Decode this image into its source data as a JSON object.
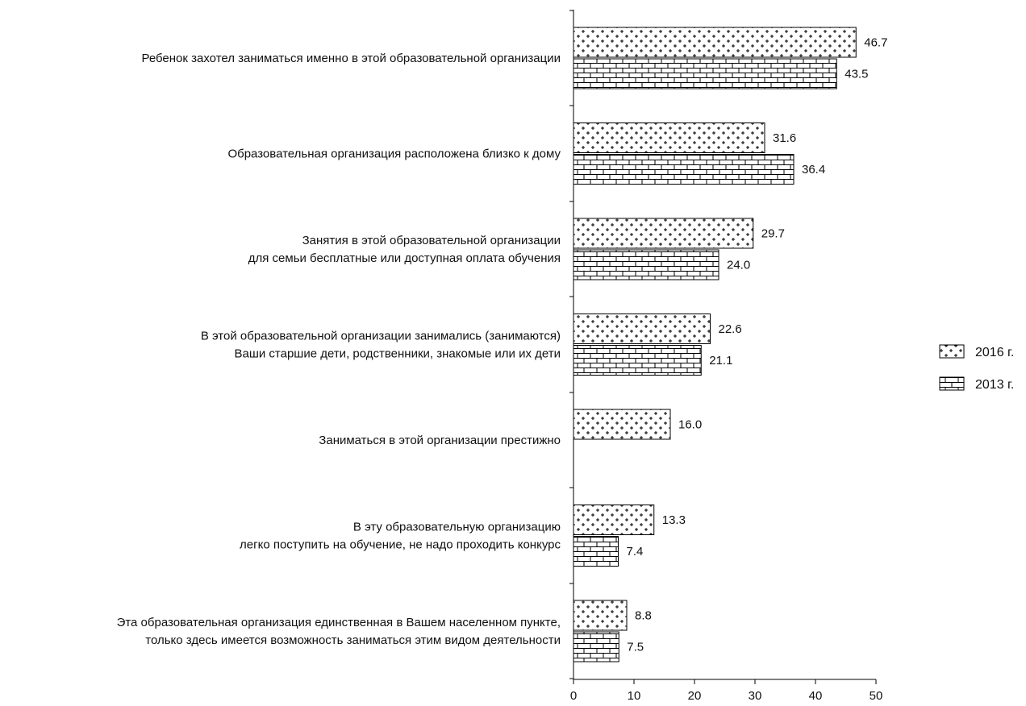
{
  "chart_data": {
    "type": "bar",
    "orientation": "horizontal",
    "categories": [
      [
        "Ребенок захотел заниматься именно в этой образовательной организации"
      ],
      [
        "Образовательная организация расположена близко к дому"
      ],
      [
        "Занятия в этой образовательной организации",
        "для семьи бесплатные или доступная оплата обучения"
      ],
      [
        "В этой образовательной организации занимались (занимаются)",
        "Ваши старшие дети, родственники, знакомые или их дети"
      ],
      [
        "Заниматься в этой организации престижно"
      ],
      [
        "В эту образовательную организацию",
        "легко поступить на обучение, не надо проходить конкурс"
      ],
      [
        "Эта образовательная организация единственная в Вашем населенном пункте,",
        "только здесь имеется возможность заниматься этим видом деятельности"
      ]
    ],
    "series": [
      {
        "name": "2016 г.",
        "pattern": "cross-hatch",
        "values": [
          46.7,
          31.6,
          29.7,
          22.6,
          16.0,
          13.3,
          8.8
        ],
        "labels": [
          "46.7",
          "31.6",
          "29.7",
          "22.6",
          "16.0",
          "13.3",
          "8.8"
        ]
      },
      {
        "name": "2013 г.",
        "pattern": "brick",
        "values": [
          43.5,
          36.4,
          24.0,
          21.1,
          null,
          7.4,
          7.5
        ],
        "labels": [
          "43.5",
          "36.4",
          "24.0",
          "21.1",
          "",
          "7.4",
          "7.5"
        ]
      }
    ],
    "xlim": [
      0,
      50
    ],
    "xticks": [
      "0",
      "10",
      "20",
      "30",
      "40",
      "50"
    ],
    "grid": false,
    "legend": "right",
    "colors": {
      "bar_stroke": "#000000",
      "pattern_stroke": "#000000",
      "background": "#ffffff"
    }
  }
}
